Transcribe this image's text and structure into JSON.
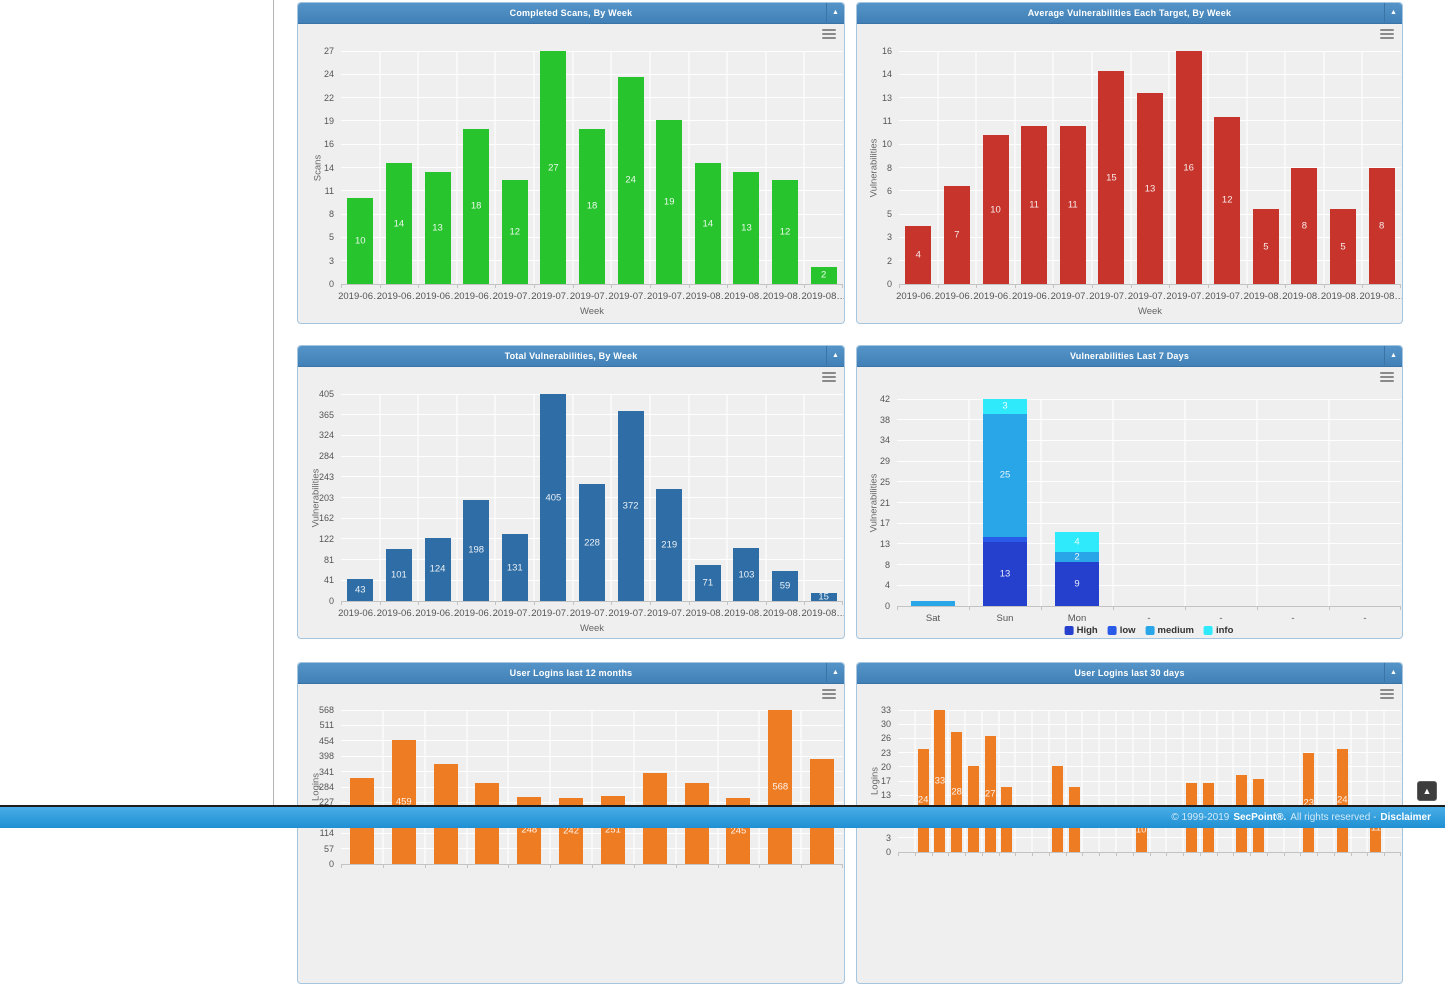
{
  "ui": {
    "collapse_icon": "▲",
    "scroll_top_icon": "▲"
  },
  "footer": {
    "copyright": "© 1999-2019",
    "brand": "SecPoint®.",
    "rights": "All rights reserved -",
    "link": "Disclaimer"
  },
  "colors": {
    "panel_header": "#4787be",
    "panel_body": "#efefef",
    "footer_bar": "#2e9fdc"
  },
  "chart_data": [
    {
      "type": "bar",
      "title": "Completed Scans, By Week",
      "xlabel": "Week",
      "ylabel": "Scans",
      "categories": [
        "2019-06…",
        "2019-06…",
        "2019-06…",
        "2019-06…",
        "2019-07…",
        "2019-07…",
        "2019-07…",
        "2019-07…",
        "2019-07…",
        "2019-08…",
        "2019-08…",
        "2019-08…",
        "2019-08…"
      ],
      "values": [
        10,
        14,
        13,
        18,
        12,
        27,
        18,
        24,
        19,
        14,
        13,
        12,
        2
      ],
      "labels": [
        "10",
        "14",
        "13",
        "18",
        "12",
        "27",
        "18",
        "24",
        "19",
        "14",
        "13",
        "12",
        "2"
      ],
      "ymax": 27,
      "ytick_labels": [
        "0",
        "3",
        "5",
        "8",
        "11",
        "14",
        "16",
        "19",
        "22",
        "24",
        "27"
      ],
      "bar_color": "#28c42e",
      "grid": true
    },
    {
      "type": "bar",
      "title": "Average Vulnerabilities Each Target, By Week",
      "xlabel": "Week",
      "ylabel": "Vulnerabilities",
      "categories": [
        "2019-06…",
        "2019-06…",
        "2019-06…",
        "2019-06…",
        "2019-07…",
        "2019-07…",
        "2019-07…",
        "2019-07…",
        "2019-07…",
        "2019-08…",
        "2019-08…",
        "2019-08…",
        "2019-08…"
      ],
      "values": [
        4,
        6.7,
        10.2,
        10.85,
        10.85,
        14.6,
        13.1,
        16,
        11.5,
        5.15,
        8,
        5.15,
        8
      ],
      "labels": [
        "4",
        "7",
        "10",
        "11",
        "11",
        "15",
        "13",
        "16",
        "12",
        "5",
        "8",
        "5",
        "8"
      ],
      "ymax": 16,
      "ytick_labels": [
        "0",
        "2",
        "3",
        "5",
        "6",
        "8",
        "10",
        "11",
        "13",
        "14",
        "16"
      ],
      "bar_color": "#c6342c",
      "grid": true
    },
    {
      "type": "bar",
      "title": "Total Vulnerabilities, By Week",
      "xlabel": "Week",
      "ylabel": "Vulnerabilities",
      "categories": [
        "2019-06…",
        "2019-06…",
        "2019-06…",
        "2019-06…",
        "2019-07…",
        "2019-07…",
        "2019-07…",
        "2019-07…",
        "2019-07…",
        "2019-08…",
        "2019-08…",
        "2019-08…",
        "2019-08…"
      ],
      "values": [
        43,
        101,
        124,
        198,
        131,
        405,
        228,
        372,
        219,
        71,
        103,
        59,
        15
      ],
      "labels": [
        "43",
        "101",
        "124",
        "198",
        "131",
        "405",
        "228",
        "372",
        "219",
        "71",
        "103",
        "59",
        "15"
      ],
      "ymax": 405,
      "ytick_labels": [
        "0",
        "41",
        "81",
        "122",
        "162",
        "203",
        "243",
        "284",
        "324",
        "365",
        "405"
      ],
      "bar_color": "#2e6da6",
      "grid": true
    },
    {
      "type": "stacked_bar",
      "title": "Vulnerabilities Last 7 Days",
      "xlabel": "",
      "ylabel": "Vulnerabilities",
      "categories": [
        "Sat",
        "Sun",
        "Mon",
        "-",
        "-",
        "-",
        "-"
      ],
      "series": [
        {
          "name": "High",
          "color": "#2440cc",
          "values": [
            0,
            13,
            9,
            0,
            0,
            0,
            0
          ]
        },
        {
          "name": "low",
          "color": "#2a5be8",
          "values": [
            0,
            1,
            0,
            0,
            0,
            0,
            0
          ]
        },
        {
          "name": "medium",
          "color": "#29a6e8",
          "values": [
            1,
            25,
            2,
            0,
            0,
            0,
            0
          ]
        },
        {
          "name": "info",
          "color": "#2feafa",
          "values": [
            0,
            3,
            4,
            0,
            0,
            0,
            0
          ]
        }
      ],
      "legend": [
        "High",
        "low",
        "medium",
        "info"
      ],
      "legend_position": "bottom",
      "ymax": 42,
      "ytick_labels": [
        "0",
        "4",
        "8",
        "13",
        "17",
        "21",
        "25",
        "29",
        "34",
        "38",
        "42"
      ],
      "grid": true
    },
    {
      "type": "bar",
      "title": "User Logins last 12 months",
      "xlabel": "",
      "ylabel": "Logins",
      "categories": [
        "",
        "",
        "",
        "",
        "",
        "",
        "",
        "",
        "",
        "",
        "",
        ""
      ],
      "values": [
        317,
        459,
        370,
        300,
        248,
        242,
        251,
        334,
        300,
        245,
        568,
        388
      ],
      "labels": [
        "317",
        "459",
        "370",
        "300",
        "248",
        "242",
        "251",
        "334",
        "300",
        "245",
        "568",
        "388"
      ],
      "ymax": 568,
      "ytick_labels": [
        "0",
        "57",
        "114",
        "170",
        "227",
        "284",
        "341",
        "398",
        "454",
        "511",
        "568"
      ],
      "bar_color": "#ee7c23",
      "grid": true
    },
    {
      "type": "bar",
      "title": "User Logins last 30 days",
      "xlabel": "",
      "ylabel": "Logins",
      "categories": [
        "",
        "",
        "",
        "",
        "",
        "",
        "",
        "",
        "",
        "",
        "",
        "",
        "",
        "",
        "",
        "",
        "",
        "",
        "",
        "",
        "",
        "",
        "",
        "",
        "",
        "",
        "",
        "",
        "",
        ""
      ],
      "values": [
        0,
        24,
        33,
        28,
        20,
        27,
        15,
        0,
        0,
        20,
        15,
        0,
        0,
        0,
        10,
        0,
        0,
        16,
        16,
        0,
        18,
        17,
        0,
        0,
        23,
        0,
        24,
        0,
        11,
        0
      ],
      "labels": [
        "",
        "24",
        "33",
        "28",
        "20",
        "27",
        "15",
        "",
        "",
        "20",
        "15",
        "",
        "",
        "",
        "10",
        "",
        "",
        "16",
        "16",
        "",
        "18",
        "17",
        "",
        "",
        "23",
        "",
        "24",
        "",
        "11",
        ""
      ],
      "ymax": 33,
      "ytick_labels": [
        "0",
        "3",
        "7",
        "10",
        "13",
        "17",
        "20",
        "23",
        "26",
        "30",
        "33"
      ],
      "bar_color": "#ee7c23",
      "grid": true
    }
  ]
}
